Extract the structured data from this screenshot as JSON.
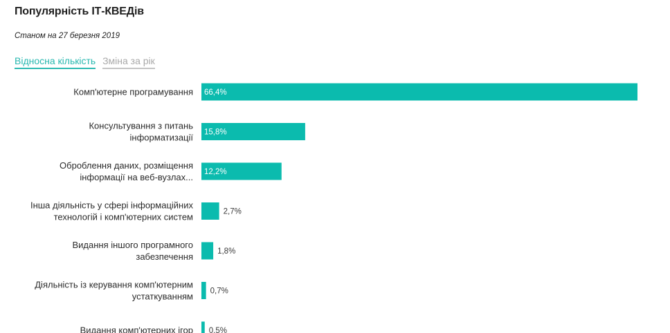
{
  "header": {
    "title": "Популярність ІТ-КВЕДів",
    "subtitle": "Станом на 27 березня 2019"
  },
  "tabs": [
    {
      "label": "Відносна кількість",
      "active": true
    },
    {
      "label": "Зміна за рік",
      "active": false
    }
  ],
  "colors": {
    "bar": "#0bbbae",
    "accent": "#28b8b0"
  },
  "chart_data": {
    "type": "bar",
    "orientation": "horizontal",
    "title": "Популярність ІТ-КВЕДів",
    "subtitle": "Станом на 27 березня 2019",
    "categories": [
      [
        "Комп'ютерне програмування"
      ],
      [
        "Консультування з питань",
        "інформатизації"
      ],
      [
        "Оброблення даних, розміщення",
        "інформації на веб-вузлах..."
      ],
      [
        "Інша діяльність у сфері інформаційних",
        "технологій і комп'ютерних систем"
      ],
      [
        "Видання іншого програмного",
        "забезпечення"
      ],
      [
        "Діяльність із керування комп'ютерним",
        "устаткуванням"
      ],
      [
        "Видання комп'ютерних ігор"
      ]
    ],
    "values": [
      66.4,
      15.8,
      12.2,
      2.7,
      1.8,
      0.7,
      0.5
    ],
    "value_labels": [
      "66,4%",
      "15,8%",
      "12,2%",
      "2,7%",
      "1,8%",
      "0,7%",
      "0,5%"
    ],
    "unit": "%",
    "xlim": [
      0,
      66.4
    ],
    "grid": false,
    "legend": "none"
  }
}
